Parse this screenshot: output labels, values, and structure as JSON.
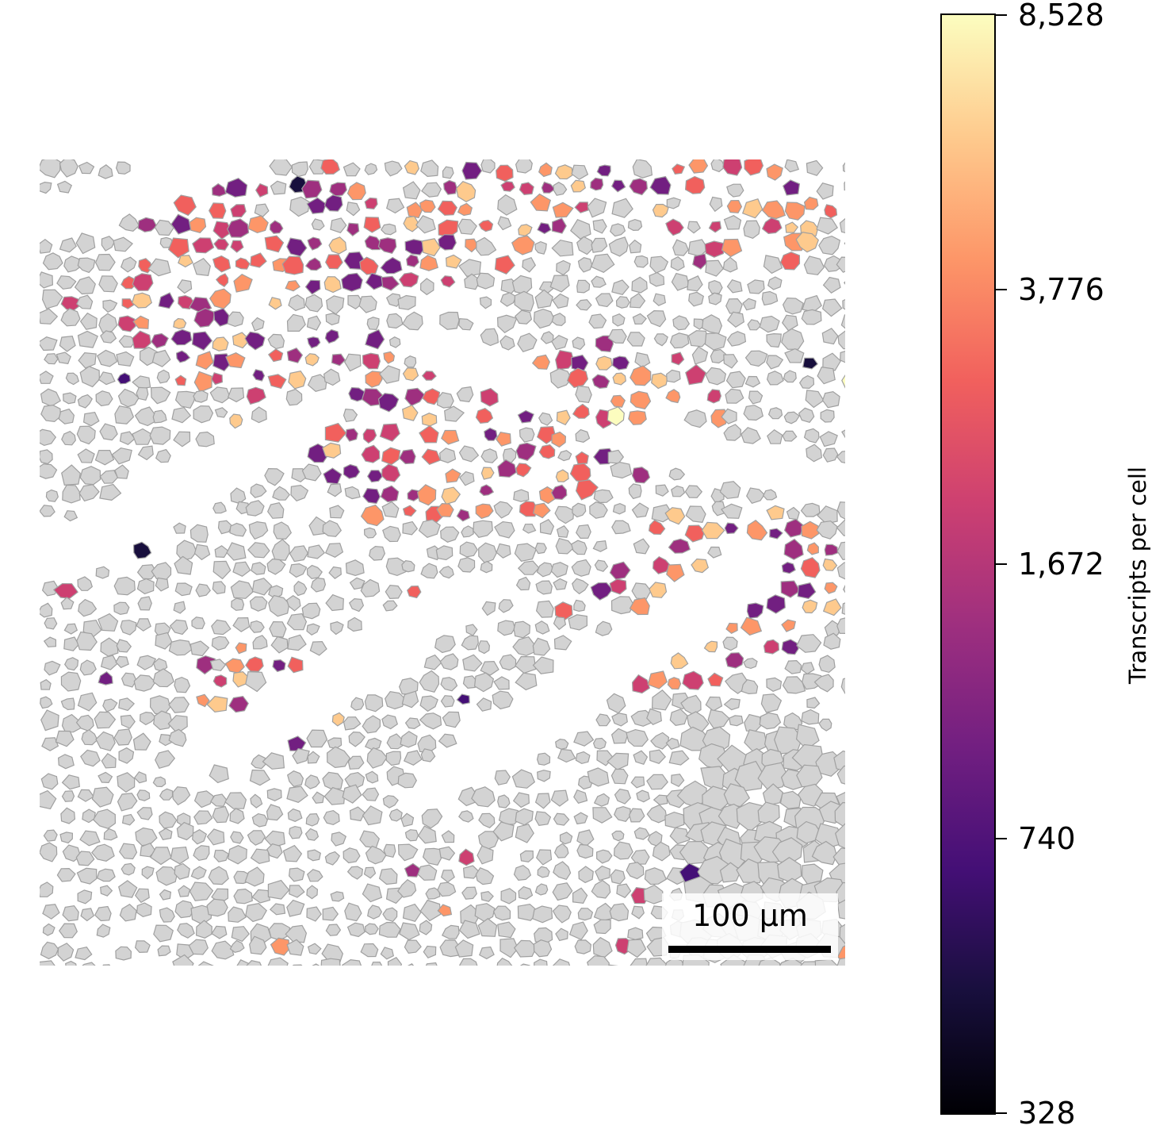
{
  "colorbar": {
    "title": "Transcripts per cell",
    "ticks": [
      {
        "label": "8,528",
        "value": 8528
      },
      {
        "label": "3,776",
        "value": 3776
      },
      {
        "label": "1,672",
        "value": 1672
      },
      {
        "label": "740",
        "value": 740
      },
      {
        "label": "328",
        "value": 328
      }
    ],
    "scale": "log",
    "colormap": "magma",
    "stops": [
      "#000004",
      "#180f3d",
      "#440f76",
      "#721f81",
      "#9e2f7f",
      "#cd4071",
      "#f1605d",
      "#fd9668",
      "#feca8d",
      "#fcfdbf"
    ]
  },
  "scalebar": {
    "label": "100 µm"
  },
  "colors": {
    "unselected_cell": "#d3d3d3",
    "cell_outline": "#a0a0a0",
    "background": "#ffffff"
  }
}
